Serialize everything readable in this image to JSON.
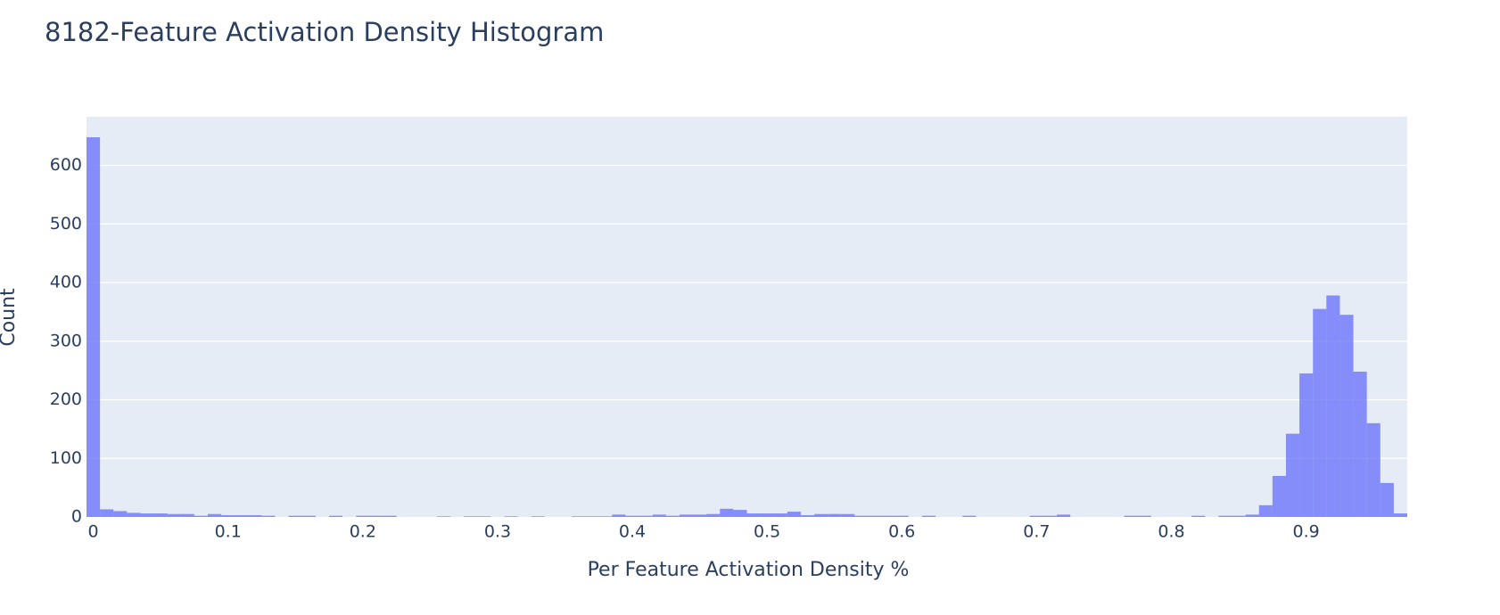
{
  "chart_data": {
    "type": "histogram",
    "title": "8182-Feature Activation Density Histogram",
    "x_label": "Per Feature Activation Density %",
    "y_label": "Count",
    "color": "#636efa",
    "opacity": 0.75,
    "grid": true,
    "bins": [
      -0.005,
      0.005,
      0.015,
      0.025,
      0.035,
      0.045,
      0.055,
      0.065,
      0.075,
      0.085,
      0.095,
      0.105,
      0.115,
      0.125,
      0.135,
      0.145,
      0.155,
      0.165,
      0.175,
      0.185,
      0.195,
      0.205,
      0.215,
      0.225,
      0.235,
      0.245,
      0.255,
      0.265,
      0.275,
      0.285,
      0.295,
      0.305,
      0.315,
      0.325,
      0.335,
      0.345,
      0.355,
      0.365,
      0.375,
      0.385,
      0.395,
      0.405,
      0.415,
      0.425,
      0.435,
      0.445,
      0.455,
      0.465,
      0.475,
      0.485,
      0.495,
      0.505,
      0.515,
      0.525,
      0.535,
      0.545,
      0.555,
      0.565,
      0.575,
      0.585,
      0.595,
      0.605,
      0.615,
      0.625,
      0.635,
      0.645,
      0.655,
      0.665,
      0.675,
      0.685,
      0.695,
      0.705,
      0.715,
      0.725,
      0.735,
      0.745,
      0.755,
      0.765,
      0.775,
      0.785,
      0.795,
      0.805,
      0.815,
      0.825,
      0.835,
      0.845,
      0.855,
      0.865,
      0.875,
      0.885,
      0.895,
      0.905,
      0.915,
      0.925,
      0.935,
      0.945,
      0.955,
      0.965,
      0.975
    ],
    "values": [
      648,
      13,
      10,
      7,
      6,
      6,
      5,
      5,
      2,
      5,
      3,
      3,
      3,
      2,
      0,
      2,
      2,
      0,
      2,
      0,
      2,
      2,
      2,
      0,
      0,
      0,
      1,
      0,
      1,
      1,
      0,
      1,
      0,
      1,
      0,
      0,
      1,
      1,
      1,
      4,
      2,
      2,
      4,
      2,
      4,
      4,
      5,
      14,
      12,
      6,
      6,
      6,
      9,
      3,
      5,
      5,
      5,
      2,
      2,
      2,
      2,
      0,
      2,
      0,
      0,
      2,
      0,
      0,
      0,
      0,
      2,
      2,
      4,
      0,
      0,
      0,
      0,
      2,
      2,
      0,
      0,
      0,
      2,
      0,
      2,
      2,
      4,
      20,
      70,
      142,
      245,
      355,
      378,
      345,
      248,
      160,
      58,
      6
    ],
    "xlim": [
      -0.005,
      0.975
    ],
    "xticks": [
      0,
      0.1,
      0.2,
      0.3,
      0.4,
      0.5,
      0.6,
      0.7,
      0.8,
      0.9
    ],
    "ylim": [
      0,
      683
    ],
    "yticks": [
      0,
      100,
      200,
      300,
      400,
      500,
      600
    ]
  }
}
